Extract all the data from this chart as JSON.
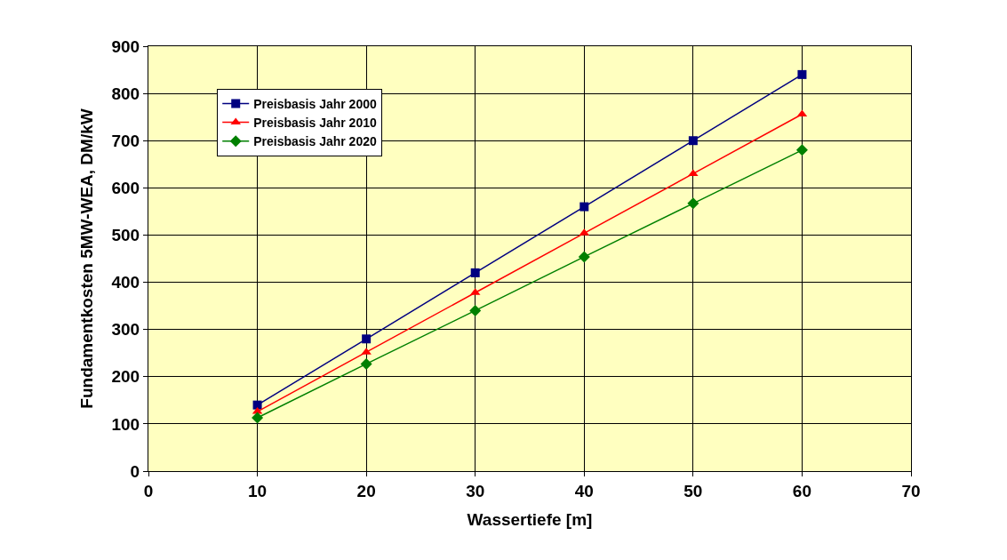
{
  "chart_data": {
    "type": "line",
    "xlabel": "Wassertiefe [m]",
    "ylabel": "Fundamentkosten 5MW-WEA, DM/kW",
    "x": [
      10,
      20,
      30,
      40,
      50,
      60
    ],
    "series": [
      {
        "name": "Preisbasis Jahr 2000",
        "color": "#000080",
        "marker": "square",
        "values": [
          140,
          280,
          420,
          560,
          700,
          840
        ]
      },
      {
        "name": "Preisbasis Jahr 2010",
        "color": "#ff0000",
        "marker": "triangle",
        "values": [
          126,
          252,
          378,
          504,
          630,
          756
        ]
      },
      {
        "name": "Preisbasis Jahr 2020",
        "color": "#008000",
        "marker": "diamond",
        "values": [
          113,
          227,
          340,
          454,
          567,
          680
        ]
      }
    ],
    "xlim": [
      0,
      70
    ],
    "xticks": [
      0,
      10,
      20,
      30,
      40,
      50,
      60,
      70
    ],
    "ylim": [
      0,
      900
    ],
    "yticks": [
      0,
      100,
      200,
      300,
      400,
      500,
      600,
      700,
      800,
      900
    ],
    "grid": true,
    "legend": "top left",
    "line_style": "solid"
  }
}
